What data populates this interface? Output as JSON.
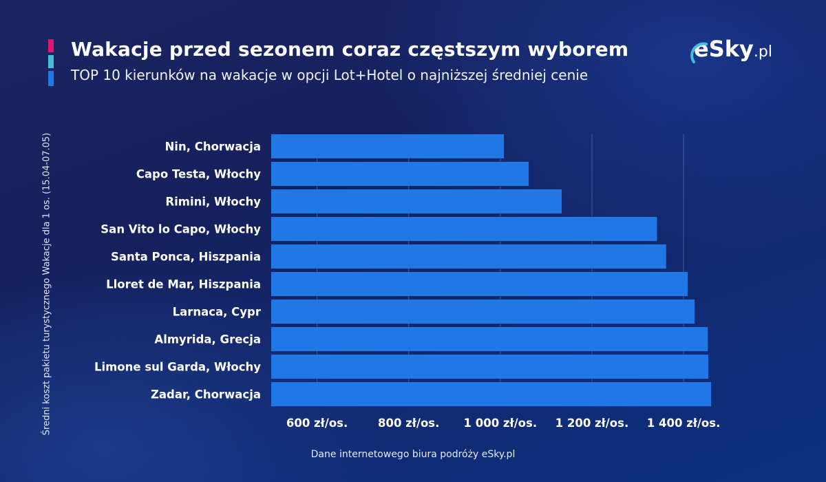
{
  "header": {
    "title": "Wakacje przed sezonem coraz częstszym wyborem",
    "subtitle": "TOP 10 kierunków na wakacje w opcji Lot+Hotel o najniższej średniej cenie",
    "accent_colors": [
      "#e3166f",
      "#41bfd8",
      "#1f78e6"
    ]
  },
  "logo": {
    "brand": "eSky",
    "tld": ".pl"
  },
  "footer": {
    "source": "Dane internetowego biura podróży eSky.pl"
  },
  "colors": {
    "bar": "#1f78e6",
    "grid": "#6f86c4"
  },
  "chart_data": {
    "type": "bar",
    "orientation": "horizontal",
    "title": "Wakacje przed sezonem coraz częstszym wyborem",
    "subtitle": "TOP 10 kierunków na wakacje w opcji Lot+Hotel o najniższej średniej cenie",
    "ylabel": "Średni koszt pakietu turystycznego Wakacje dla 1 os. (15.04-07.05)",
    "categories": [
      "Nin, Chorwacja",
      "Capo Testa, Włochy",
      "Rimini, Włochy",
      "San Vito lo Capo, Włochy",
      "Santa Ponca, Hiszpania",
      "Lloret de Mar, Hiszpania",
      "Larnaca, Cypr",
      "Almyrida, Grecja",
      "Limone sul Garda, Włochy",
      "Zadar, Chorwacja"
    ],
    "values": [
      1008,
      1062,
      1134,
      1342,
      1362,
      1409,
      1424,
      1453,
      1454,
      1460
    ],
    "xlim": [
      500,
      1460
    ],
    "ticks": [
      600,
      800,
      1000,
      1200,
      1400
    ],
    "tick_labels": [
      "600 zł/os.",
      "800 zł/os.",
      "1 000 zł/os.",
      "1 200 zł/os.",
      "1 400 zł/os."
    ],
    "grid": "vertical"
  }
}
